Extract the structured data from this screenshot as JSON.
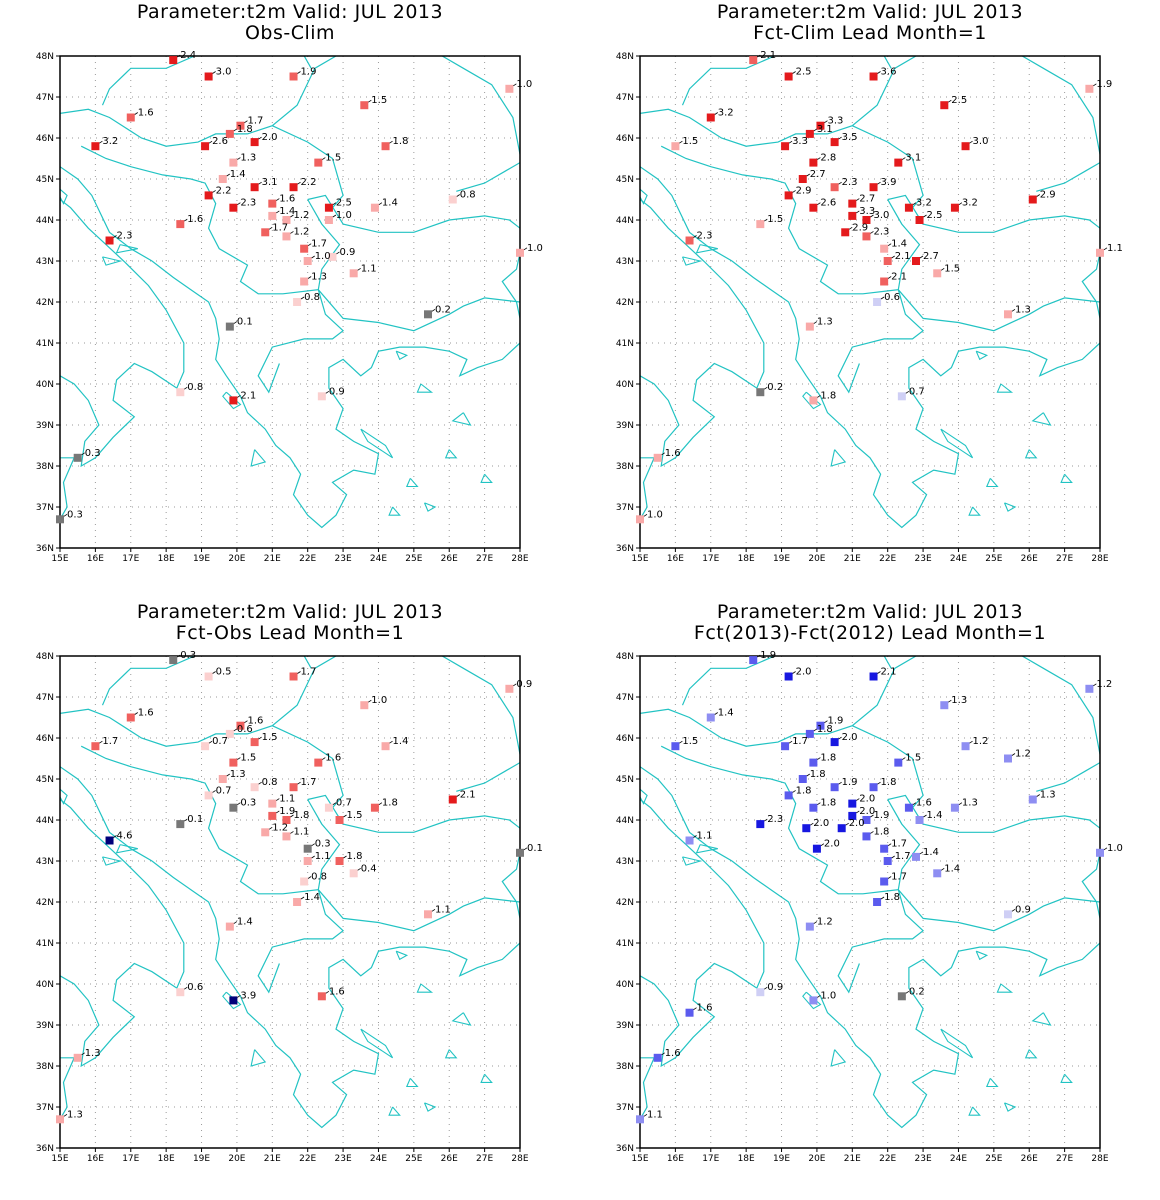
{
  "colors": {
    "coast": "#22c3c3",
    "grid": "#9a9a9a",
    "strong_red": "#e41a1c",
    "mid_red": "#f0605e",
    "light_red": "#f9a9a8",
    "faint_red": "#fbd0cf",
    "gray": "#777777",
    "faint_blue": "#cfcff5",
    "light_blue": "#8e8ef2",
    "mid_blue": "#5b5bee",
    "strong_blue": "#1717e0",
    "navy": "#00007a"
  },
  "axes": {
    "lon_labels": [
      "15E",
      "16E",
      "17E",
      "18E",
      "19E",
      "20E",
      "21E",
      "22E",
      "23E",
      "24E",
      "25E",
      "26E",
      "27E",
      "28E"
    ],
    "lat_labels": [
      "36N",
      "37N",
      "38N",
      "39N",
      "40N",
      "41N",
      "42N",
      "43N",
      "44N",
      "45N",
      "46N",
      "47N",
      "48N"
    ],
    "lon_range": [
      15,
      28
    ],
    "lat_range": [
      36,
      48
    ]
  },
  "panels": [
    {
      "title1": "Parameter:t2m Valid: JUL 2013",
      "title2": "Obs-Clim",
      "chart_data": {
        "type": "scatter",
        "points": [
          {
            "lon": 18.2,
            "lat": 47.9,
            "value": "2.4"
          },
          {
            "lon": 19.2,
            "lat": 47.5,
            "value": "3.0"
          },
          {
            "lon": 21.6,
            "lat": 47.5,
            "value": "1.9"
          },
          {
            "lon": 27.7,
            "lat": 47.2,
            "value": "1.0"
          },
          {
            "lon": 17.0,
            "lat": 46.5,
            "value": "1.6"
          },
          {
            "lon": 23.6,
            "lat": 46.8,
            "value": "1.5"
          },
          {
            "lon": 20.1,
            "lat": 46.3,
            "value": "1.7"
          },
          {
            "lon": 19.8,
            "lat": 46.1,
            "value": "1.8"
          },
          {
            "lon": 16.0,
            "lat": 45.8,
            "value": "3.2"
          },
          {
            "lon": 19.1,
            "lat": 45.8,
            "value": "2.6"
          },
          {
            "lon": 20.5,
            "lat": 45.9,
            "value": "2.0"
          },
          {
            "lon": 24.2,
            "lat": 45.8,
            "value": "1.8"
          },
          {
            "lon": 19.9,
            "lat": 45.4,
            "value": "1.3"
          },
          {
            "lon": 22.3,
            "lat": 45.4,
            "value": "1.5"
          },
          {
            "lon": 19.6,
            "lat": 45.0,
            "value": "1.4"
          },
          {
            "lon": 20.5,
            "lat": 44.8,
            "value": "3.1"
          },
          {
            "lon": 21.6,
            "lat": 44.8,
            "value": "2.2"
          },
          {
            "lon": 19.2,
            "lat": 44.6,
            "value": "2.2"
          },
          {
            "lon": 21.0,
            "lat": 44.4,
            "value": "1.6"
          },
          {
            "lon": 26.1,
            "lat": 44.5,
            "value": "0.8"
          },
          {
            "lon": 19.9,
            "lat": 44.3,
            "value": "2.3"
          },
          {
            "lon": 22.6,
            "lat": 44.3,
            "value": "2.5"
          },
          {
            "lon": 23.9,
            "lat": 44.3,
            "value": "1.4"
          },
          {
            "lon": 21.0,
            "lat": 44.1,
            "value": "1.4"
          },
          {
            "lon": 21.4,
            "lat": 44.0,
            "value": "1.2"
          },
          {
            "lon": 22.6,
            "lat": 44.0,
            "value": "1.0"
          },
          {
            "lon": 18.4,
            "lat": 43.9,
            "value": "1.6"
          },
          {
            "lon": 20.8,
            "lat": 43.7,
            "value": "1.7"
          },
          {
            "lon": 21.4,
            "lat": 43.6,
            "value": "1.2"
          },
          {
            "lon": 16.4,
            "lat": 43.5,
            "value": "2.3"
          },
          {
            "lon": 21.9,
            "lat": 43.3,
            "value": "1.7"
          },
          {
            "lon": 22.7,
            "lat": 43.1,
            "value": "0.9"
          },
          {
            "lon": 22.0,
            "lat": 43.0,
            "value": "1.0"
          },
          {
            "lon": 28.0,
            "lat": 43.2,
            "value": "1.0"
          },
          {
            "lon": 23.3,
            "lat": 42.7,
            "value": "1.1"
          },
          {
            "lon": 21.9,
            "lat": 42.5,
            "value": "1.3"
          },
          {
            "lon": 21.7,
            "lat": 42.0,
            "value": "0.8"
          },
          {
            "lon": 25.4,
            "lat": 41.7,
            "value": "0.2"
          },
          {
            "lon": 19.8,
            "lat": 41.4,
            "value": "0.1"
          },
          {
            "lon": 18.4,
            "lat": 39.8,
            "value": "0.8"
          },
          {
            "lon": 19.9,
            "lat": 39.6,
            "value": "2.1"
          },
          {
            "lon": 22.4,
            "lat": 39.7,
            "value": "0.9"
          },
          {
            "lon": 15.5,
            "lat": 38.2,
            "value": "0.3"
          },
          {
            "lon": 15.0,
            "lat": 36.7,
            "value": "0.3"
          }
        ]
      }
    },
    {
      "title1": "Parameter:t2m Valid: JUL 2013",
      "title2": "Fct-Clim Lead Month=1",
      "chart_data": {
        "type": "scatter",
        "points": [
          {
            "lon": 18.2,
            "lat": 47.9,
            "value": "2.1"
          },
          {
            "lon": 19.2,
            "lat": 47.5,
            "value": "2.5"
          },
          {
            "lon": 21.6,
            "lat": 47.5,
            "value": "3.6"
          },
          {
            "lon": 27.7,
            "lat": 47.2,
            "value": "1.9"
          },
          {
            "lon": 17.0,
            "lat": 46.5,
            "value": "3.2"
          },
          {
            "lon": 23.6,
            "lat": 46.8,
            "value": "2.5"
          },
          {
            "lon": 20.1,
            "lat": 46.3,
            "value": "3.3"
          },
          {
            "lon": 19.8,
            "lat": 46.1,
            "value": "3.1"
          },
          {
            "lon": 16.0,
            "lat": 45.8,
            "value": "1.5"
          },
          {
            "lon": 19.1,
            "lat": 45.8,
            "value": "3.3"
          },
          {
            "lon": 20.5,
            "lat": 45.9,
            "value": "3.5"
          },
          {
            "lon": 24.2,
            "lat": 45.8,
            "value": "3.0"
          },
          {
            "lon": 19.9,
            "lat": 45.4,
            "value": "2.8"
          },
          {
            "lon": 22.3,
            "lat": 45.4,
            "value": "3.1"
          },
          {
            "lon": 19.6,
            "lat": 45.0,
            "value": "2.7"
          },
          {
            "lon": 20.5,
            "lat": 44.8,
            "value": "2.3"
          },
          {
            "lon": 21.6,
            "lat": 44.8,
            "value": "3.9"
          },
          {
            "lon": 19.2,
            "lat": 44.6,
            "value": "2.9"
          },
          {
            "lon": 21.0,
            "lat": 44.4,
            "value": "2.7"
          },
          {
            "lon": 26.1,
            "lat": 44.5,
            "value": "2.9"
          },
          {
            "lon": 19.9,
            "lat": 44.3,
            "value": "2.6"
          },
          {
            "lon": 22.6,
            "lat": 44.3,
            "value": "3.2"
          },
          {
            "lon": 23.9,
            "lat": 44.3,
            "value": "3.2"
          },
          {
            "lon": 21.0,
            "lat": 44.1,
            "value": "3.3"
          },
          {
            "lon": 21.4,
            "lat": 44.0,
            "value": "3.0"
          },
          {
            "lon": 22.9,
            "lat": 44.0,
            "value": "2.5"
          },
          {
            "lon": 18.4,
            "lat": 43.9,
            "value": "1.5"
          },
          {
            "lon": 20.8,
            "lat": 43.7,
            "value": "2.9"
          },
          {
            "lon": 21.4,
            "lat": 43.6,
            "value": "2.3"
          },
          {
            "lon": 16.4,
            "lat": 43.5,
            "value": "2.3"
          },
          {
            "lon": 21.9,
            "lat": 43.3,
            "value": "1.4"
          },
          {
            "lon": 22.8,
            "lat": 43.0,
            "value": "2.7"
          },
          {
            "lon": 22.0,
            "lat": 43.0,
            "value": "2.1"
          },
          {
            "lon": 28.0,
            "lat": 43.2,
            "value": "1.1"
          },
          {
            "lon": 23.4,
            "lat": 42.7,
            "value": "1.5"
          },
          {
            "lon": 21.9,
            "lat": 42.5,
            "value": "2.1"
          },
          {
            "lon": 21.7,
            "lat": 42.0,
            "value": "0.6"
          },
          {
            "lon": 25.4,
            "lat": 41.7,
            "value": "1.3"
          },
          {
            "lon": 19.8,
            "lat": 41.4,
            "value": "1.3"
          },
          {
            "lon": 18.4,
            "lat": 39.8,
            "value": "0.2"
          },
          {
            "lon": 19.9,
            "lat": 39.6,
            "value": "1.8"
          },
          {
            "lon": 22.4,
            "lat": 39.7,
            "value": "0.7"
          },
          {
            "lon": 15.5,
            "lat": 38.2,
            "value": "1.6"
          },
          {
            "lon": 15.0,
            "lat": 36.7,
            "value": "1.0"
          }
        ]
      }
    },
    {
      "title1": "Parameter:t2m Valid: JUL 2013",
      "title2": "Fct-Obs Lead Month=1",
      "chart_data": {
        "type": "scatter",
        "points": [
          {
            "lon": 18.2,
            "lat": 47.9,
            "value": "0.3"
          },
          {
            "lon": 19.2,
            "lat": 47.5,
            "value": "0.5"
          },
          {
            "lon": 21.6,
            "lat": 47.5,
            "value": "1.7"
          },
          {
            "lon": 27.7,
            "lat": 47.2,
            "value": "0.9"
          },
          {
            "lon": 17.0,
            "lat": 46.5,
            "value": "1.6"
          },
          {
            "lon": 23.6,
            "lat": 46.8,
            "value": "1.0"
          },
          {
            "lon": 20.1,
            "lat": 46.3,
            "value": "1.6"
          },
          {
            "lon": 19.8,
            "lat": 46.1,
            "value": "0.6"
          },
          {
            "lon": 16.0,
            "lat": 45.8,
            "value": "1.7"
          },
          {
            "lon": 19.1,
            "lat": 45.8,
            "value": "0.7"
          },
          {
            "lon": 20.5,
            "lat": 45.9,
            "value": "1.5"
          },
          {
            "lon": 24.2,
            "lat": 45.8,
            "value": "1.4"
          },
          {
            "lon": 19.9,
            "lat": 45.4,
            "value": "1.5"
          },
          {
            "lon": 22.3,
            "lat": 45.4,
            "value": "1.6"
          },
          {
            "lon": 19.6,
            "lat": 45.0,
            "value": "1.3"
          },
          {
            "lon": 20.5,
            "lat": 44.8,
            "value": "0.8"
          },
          {
            "lon": 21.6,
            "lat": 44.8,
            "value": "1.7"
          },
          {
            "lon": 19.2,
            "lat": 44.6,
            "value": "0.7"
          },
          {
            "lon": 21.0,
            "lat": 44.4,
            "value": "1.1"
          },
          {
            "lon": 26.1,
            "lat": 44.5,
            "value": "2.1"
          },
          {
            "lon": 19.9,
            "lat": 44.3,
            "value": "0.3"
          },
          {
            "lon": 22.6,
            "lat": 44.3,
            "value": "0.7"
          },
          {
            "lon": 23.9,
            "lat": 44.3,
            "value": "1.8"
          },
          {
            "lon": 21.0,
            "lat": 44.1,
            "value": "1.9"
          },
          {
            "lon": 21.4,
            "lat": 44.0,
            "value": "1.8"
          },
          {
            "lon": 22.9,
            "lat": 44.0,
            "value": "1.5"
          },
          {
            "lon": 18.4,
            "lat": 43.9,
            "value": "0.1"
          },
          {
            "lon": 20.8,
            "lat": 43.7,
            "value": "1.2"
          },
          {
            "lon": 21.4,
            "lat": 43.6,
            "value": "1.1"
          },
          {
            "lon": 16.4,
            "lat": 43.5,
            "value": "4.6"
          },
          {
            "lon": 22.0,
            "lat": 43.3,
            "value": "0.3"
          },
          {
            "lon": 22.9,
            "lat": 43.0,
            "value": "1.8"
          },
          {
            "lon": 22.0,
            "lat": 43.0,
            "value": "1.1"
          },
          {
            "lon": 28.0,
            "lat": 43.2,
            "value": "0.1"
          },
          {
            "lon": 23.3,
            "lat": 42.7,
            "value": "0.4"
          },
          {
            "lon": 21.9,
            "lat": 42.5,
            "value": "0.8"
          },
          {
            "lon": 21.7,
            "lat": 42.0,
            "value": "1.4"
          },
          {
            "lon": 25.4,
            "lat": 41.7,
            "value": "1.1"
          },
          {
            "lon": 19.8,
            "lat": 41.4,
            "value": "1.4"
          },
          {
            "lon": 18.4,
            "lat": 39.8,
            "value": "0.6"
          },
          {
            "lon": 19.9,
            "lat": 39.6,
            "value": "3.9"
          },
          {
            "lon": 22.4,
            "lat": 39.7,
            "value": "1.6"
          },
          {
            "lon": 15.5,
            "lat": 38.2,
            "value": "1.3"
          },
          {
            "lon": 15.0,
            "lat": 36.7,
            "value": "1.3"
          }
        ]
      }
    },
    {
      "title1": "Parameter:t2m Valid: JUL 2013",
      "title2": "Fct(2013)-Fct(2012) Lead Month=1",
      "chart_data": {
        "type": "scatter",
        "points": [
          {
            "lon": 18.2,
            "lat": 47.9,
            "value": "1.9"
          },
          {
            "lon": 19.2,
            "lat": 47.5,
            "value": "2.0"
          },
          {
            "lon": 21.6,
            "lat": 47.5,
            "value": "2.1"
          },
          {
            "lon": 27.7,
            "lat": 47.2,
            "value": "1.2"
          },
          {
            "lon": 17.0,
            "lat": 46.5,
            "value": "1.4"
          },
          {
            "lon": 23.6,
            "lat": 46.8,
            "value": "1.3"
          },
          {
            "lon": 20.1,
            "lat": 46.3,
            "value": "1.9"
          },
          {
            "lon": 19.8,
            "lat": 46.1,
            "value": "1.8"
          },
          {
            "lon": 16.0,
            "lat": 45.8,
            "value": "1.5"
          },
          {
            "lon": 19.1,
            "lat": 45.8,
            "value": "1.7"
          },
          {
            "lon": 20.5,
            "lat": 45.9,
            "value": "2.0"
          },
          {
            "lon": 24.2,
            "lat": 45.8,
            "value": "1.2"
          },
          {
            "lon": 19.9,
            "lat": 45.4,
            "value": "1.8"
          },
          {
            "lon": 22.3,
            "lat": 45.4,
            "value": "1.5"
          },
          {
            "lon": 25.4,
            "lat": 45.5,
            "value": "1.2"
          },
          {
            "lon": 19.6,
            "lat": 45.0,
            "value": "1.8"
          },
          {
            "lon": 20.5,
            "lat": 44.8,
            "value": "1.9"
          },
          {
            "lon": 21.6,
            "lat": 44.8,
            "value": "1.8"
          },
          {
            "lon": 19.2,
            "lat": 44.6,
            "value": "1.8"
          },
          {
            "lon": 21.0,
            "lat": 44.4,
            "value": "2.0"
          },
          {
            "lon": 26.1,
            "lat": 44.5,
            "value": "1.3"
          },
          {
            "lon": 19.9,
            "lat": 44.3,
            "value": "1.8"
          },
          {
            "lon": 22.6,
            "lat": 44.3,
            "value": "1.6"
          },
          {
            "lon": 23.9,
            "lat": 44.3,
            "value": "1.3"
          },
          {
            "lon": 21.0,
            "lat": 44.1,
            "value": "2.0"
          },
          {
            "lon": 21.4,
            "lat": 44.0,
            "value": "1.9"
          },
          {
            "lon": 22.9,
            "lat": 44.0,
            "value": "1.4"
          },
          {
            "lon": 18.4,
            "lat": 43.9,
            "value": "2.3"
          },
          {
            "lon": 19.7,
            "lat": 43.8,
            "value": "2.0"
          },
          {
            "lon": 20.7,
            "lat": 43.8,
            "value": "2.0"
          },
          {
            "lon": 21.4,
            "lat": 43.6,
            "value": "1.8"
          },
          {
            "lon": 16.4,
            "lat": 43.5,
            "value": "1.1"
          },
          {
            "lon": 20.0,
            "lat": 43.3,
            "value": "2.0"
          },
          {
            "lon": 21.9,
            "lat": 43.3,
            "value": "1.7"
          },
          {
            "lon": 22.8,
            "lat": 43.1,
            "value": "1.4"
          },
          {
            "lon": 22.0,
            "lat": 43.0,
            "value": "1.7"
          },
          {
            "lon": 28.0,
            "lat": 43.2,
            "value": "1.0"
          },
          {
            "lon": 23.4,
            "lat": 42.7,
            "value": "1.4"
          },
          {
            "lon": 21.9,
            "lat": 42.5,
            "value": "1.7"
          },
          {
            "lon": 21.7,
            "lat": 42.0,
            "value": "1.8"
          },
          {
            "lon": 25.4,
            "lat": 41.7,
            "value": "0.9"
          },
          {
            "lon": 19.8,
            "lat": 41.4,
            "value": "1.2"
          },
          {
            "lon": 18.4,
            "lat": 39.8,
            "value": "0.9"
          },
          {
            "lon": 19.9,
            "lat": 39.6,
            "value": "1.0"
          },
          {
            "lon": 22.4,
            "lat": 39.7,
            "value": "0.2"
          },
          {
            "lon": 16.4,
            "lat": 39.3,
            "value": "1.6"
          },
          {
            "lon": 15.5,
            "lat": 38.2,
            "value": "1.6"
          },
          {
            "lon": 15.0,
            "lat": 36.7,
            "value": "1.1"
          }
        ]
      }
    }
  ]
}
